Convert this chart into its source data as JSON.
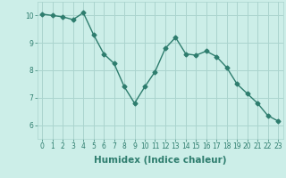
{
  "x": [
    0,
    1,
    2,
    3,
    4,
    5,
    6,
    7,
    8,
    9,
    10,
    11,
    12,
    13,
    14,
    15,
    16,
    17,
    18,
    19,
    20,
    21,
    22,
    23
  ],
  "y": [
    10.05,
    10.0,
    9.95,
    9.85,
    10.1,
    9.3,
    8.6,
    8.25,
    7.4,
    6.8,
    7.4,
    7.95,
    8.8,
    9.2,
    8.6,
    8.55,
    8.7,
    8.5,
    8.1,
    7.5,
    7.15,
    6.8,
    6.35,
    6.15
  ],
  "line_color": "#2e7d6e",
  "marker": "D",
  "markersize": 2.5,
  "linewidth": 1.0,
  "bg_color": "#cceee8",
  "grid_color": "#aad4ce",
  "xlabel": "Humidex (Indice chaleur)",
  "xlim": [
    -0.5,
    23.5
  ],
  "ylim": [
    5.5,
    10.5
  ],
  "yticks": [
    6,
    7,
    8,
    9,
    10
  ],
  "xticks": [
    0,
    1,
    2,
    3,
    4,
    5,
    6,
    7,
    8,
    9,
    10,
    11,
    12,
    13,
    14,
    15,
    16,
    17,
    18,
    19,
    20,
    21,
    22,
    23
  ],
  "tick_fontsize": 5.5,
  "xlabel_fontsize": 7.5,
  "tick_color": "#2e7d6e",
  "label_color": "#2e7d6e"
}
